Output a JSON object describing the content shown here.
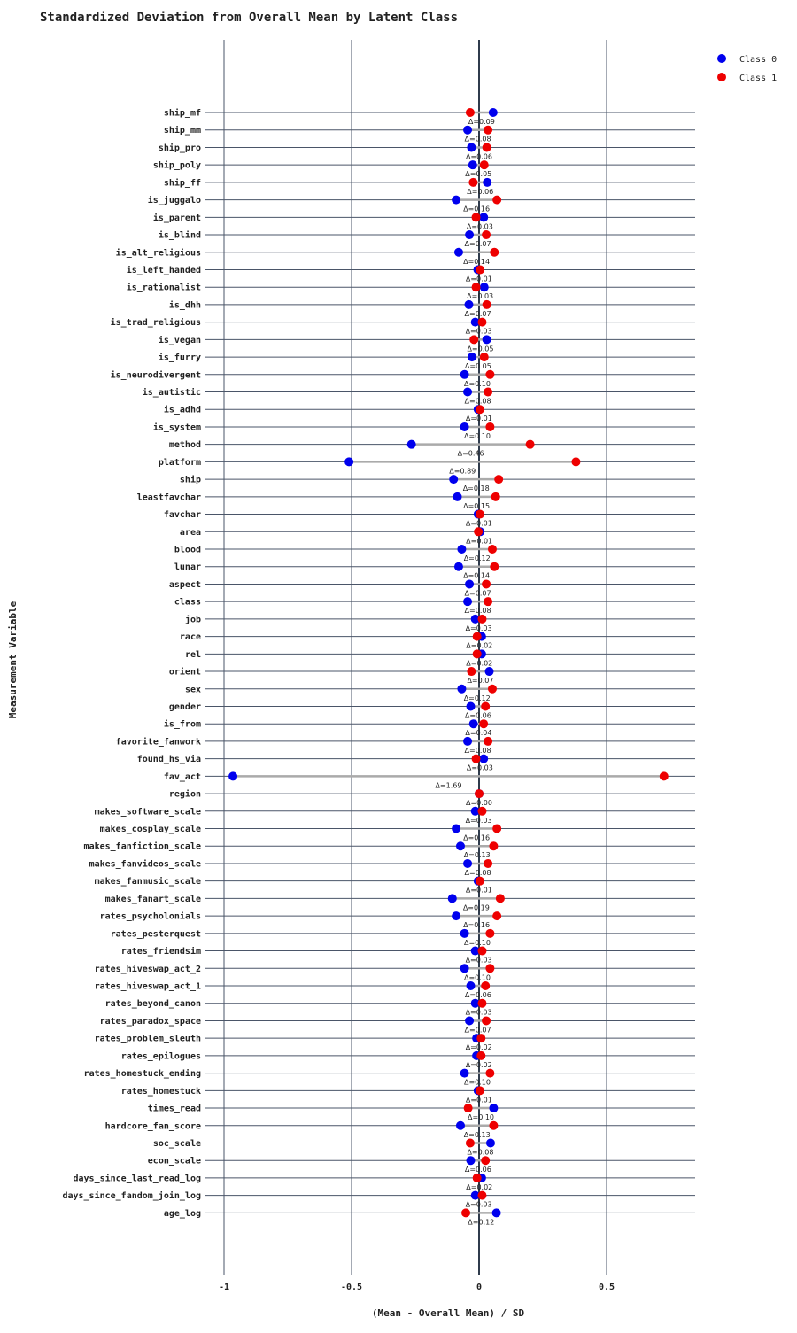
{
  "chart_data": {
    "type": "dot",
    "title": "Standardized Deviation from Overall Mean by Latent Class",
    "xlabel": "(Mean - Overall Mean) / SD",
    "ylabel": "Measurement Variable",
    "xlim": [
      -1.0,
      0.85
    ],
    "xticks": [
      -1,
      -0.5,
      0,
      0.5
    ],
    "xtick_labels": [
      "-1",
      "-0.5",
      "0",
      "0.5"
    ],
    "legend_position": "top-right",
    "series": [
      {
        "name": "Class 0",
        "color": "#0000ee"
      },
      {
        "name": "Class 1",
        "color": "#ee0000"
      }
    ],
    "rows": [
      {
        "label": "ship_mf",
        "c0": 0.055,
        "c1": -0.035,
        "delta": "Δ=0.09"
      },
      {
        "label": "ship_mm",
        "c0": -0.045,
        "c1": 0.035,
        "delta": "Δ=0.08"
      },
      {
        "label": "ship_pro",
        "c0": -0.03,
        "c1": 0.03,
        "delta": "Δ=0.06"
      },
      {
        "label": "ship_poly",
        "c0": -0.025,
        "c1": 0.02,
        "delta": "Δ=0.05"
      },
      {
        "label": "ship_ff",
        "c0": 0.032,
        "c1": -0.023,
        "delta": "Δ=0.06"
      },
      {
        "label": "is_juggalo",
        "c0": -0.09,
        "c1": 0.07,
        "delta": "Δ=0.16"
      },
      {
        "label": "is_parent",
        "c0": 0.018,
        "c1": -0.012,
        "delta": "Δ=0.03"
      },
      {
        "label": "is_blind",
        "c0": -0.038,
        "c1": 0.028,
        "delta": "Δ=0.07"
      },
      {
        "label": "is_alt_religious",
        "c0": -0.08,
        "c1": 0.06,
        "delta": "Δ=0.14"
      },
      {
        "label": "is_left_handed",
        "c0": -0.005,
        "c1": 0.004,
        "delta": "Δ=0.01"
      },
      {
        "label": "is_rationalist",
        "c0": 0.02,
        "c1": -0.012,
        "delta": "Δ=0.03"
      },
      {
        "label": "is_dhh",
        "c0": -0.04,
        "c1": 0.03,
        "delta": "Δ=0.07"
      },
      {
        "label": "is_trad_religious",
        "c0": -0.015,
        "c1": 0.012,
        "delta": "Δ=0.03"
      },
      {
        "label": "is_vegan",
        "c0": 0.03,
        "c1": -0.02,
        "delta": "Δ=0.05"
      },
      {
        "label": "is_furry",
        "c0": -0.028,
        "c1": 0.02,
        "delta": "Δ=0.05"
      },
      {
        "label": "is_neurodivergent",
        "c0": -0.057,
        "c1": 0.043,
        "delta": "Δ=0.10"
      },
      {
        "label": "is_autistic",
        "c0": -0.045,
        "c1": 0.035,
        "delta": "Δ=0.08"
      },
      {
        "label": "is_adhd",
        "c0": -0.004,
        "c1": 0.003,
        "delta": "Δ=0.01"
      },
      {
        "label": "is_system",
        "c0": -0.057,
        "c1": 0.043,
        "delta": "Δ=0.10"
      },
      {
        "label": "method",
        "c0": -0.265,
        "c1": 0.2,
        "delta": "Δ=0.46"
      },
      {
        "label": "platform",
        "c0": -0.51,
        "c1": 0.38,
        "delta": "Δ=0.89"
      },
      {
        "label": "ship",
        "c0": -0.1,
        "c1": 0.077,
        "delta": "Δ=0.18"
      },
      {
        "label": "leastfavchar",
        "c0": -0.085,
        "c1": 0.065,
        "delta": "Δ=0.15"
      },
      {
        "label": "favchar",
        "c0": -0.004,
        "c1": 0.003,
        "delta": "Δ=0.01"
      },
      {
        "label": "area",
        "c0": 0.004,
        "c1": -0.003,
        "delta": "Δ=0.01"
      },
      {
        "label": "blood",
        "c0": -0.068,
        "c1": 0.052,
        "delta": "Δ=0.12"
      },
      {
        "label": "lunar",
        "c0": -0.08,
        "c1": 0.06,
        "delta": "Δ=0.14"
      },
      {
        "label": "aspect",
        "c0": -0.038,
        "c1": 0.028,
        "delta": "Δ=0.07"
      },
      {
        "label": "class",
        "c0": -0.045,
        "c1": 0.035,
        "delta": "Δ=0.08"
      },
      {
        "label": "job",
        "c0": -0.015,
        "c1": 0.012,
        "delta": "Δ=0.03"
      },
      {
        "label": "race",
        "c0": 0.01,
        "c1": -0.008,
        "delta": "Δ=0.02"
      },
      {
        "label": "rel",
        "c0": 0.01,
        "c1": -0.008,
        "delta": "Δ=0.02"
      },
      {
        "label": "orient",
        "c0": 0.04,
        "c1": -0.03,
        "delta": "Δ=0.07"
      },
      {
        "label": "sex",
        "c0": -0.068,
        "c1": 0.052,
        "delta": "Δ=0.12"
      },
      {
        "label": "gender",
        "c0": -0.033,
        "c1": 0.025,
        "delta": "Δ=0.06"
      },
      {
        "label": "is_from",
        "c0": -0.022,
        "c1": 0.018,
        "delta": "Δ=0.04"
      },
      {
        "label": "favorite_fanwork",
        "c0": -0.045,
        "c1": 0.035,
        "delta": "Δ=0.08"
      },
      {
        "label": "found_hs_via",
        "c0": 0.018,
        "c1": -0.012,
        "delta": "Δ=0.03"
      },
      {
        "label": "fav_act",
        "c0": -0.965,
        "c1": 0.725,
        "delta": "Δ=1.69"
      },
      {
        "label": "region",
        "c0": 0.0,
        "c1": 0.0,
        "delta": "Δ=0.00"
      },
      {
        "label": "makes_software_scale",
        "c0": -0.015,
        "c1": 0.012,
        "delta": "Δ=0.03"
      },
      {
        "label": "makes_cosplay_scale",
        "c0": -0.09,
        "c1": 0.07,
        "delta": "Δ=0.16"
      },
      {
        "label": "makes_fanfiction_scale",
        "c0": -0.073,
        "c1": 0.057,
        "delta": "Δ=0.13"
      },
      {
        "label": "makes_fanvideos_scale",
        "c0": -0.045,
        "c1": 0.035,
        "delta": "Δ=0.08"
      },
      {
        "label": "makes_fanmusic_scale",
        "c0": -0.004,
        "c1": 0.003,
        "delta": "Δ=0.01"
      },
      {
        "label": "makes_fanart_scale",
        "c0": -0.105,
        "c1": 0.083,
        "delta": "Δ=0.19"
      },
      {
        "label": "rates_psycholonials",
        "c0": -0.09,
        "c1": 0.07,
        "delta": "Δ=0.16"
      },
      {
        "label": "rates_pesterquest",
        "c0": -0.057,
        "c1": 0.043,
        "delta": "Δ=0.10"
      },
      {
        "label": "rates_friendsim",
        "c0": -0.015,
        "c1": 0.012,
        "delta": "Δ=0.03"
      },
      {
        "label": "rates_hiveswap_act_2",
        "c0": -0.057,
        "c1": 0.043,
        "delta": "Δ=0.10"
      },
      {
        "label": "rates_hiveswap_act_1",
        "c0": -0.033,
        "c1": 0.025,
        "delta": "Δ=0.06"
      },
      {
        "label": "rates_beyond_canon",
        "c0": -0.015,
        "c1": 0.012,
        "delta": "Δ=0.03"
      },
      {
        "label": "rates_paradox_space",
        "c0": -0.038,
        "c1": 0.028,
        "delta": "Δ=0.07"
      },
      {
        "label": "rates_problem_sleuth",
        "c0": -0.01,
        "c1": 0.008,
        "delta": "Δ=0.02"
      },
      {
        "label": "rates_epilogues",
        "c0": -0.01,
        "c1": 0.008,
        "delta": "Δ=0.02"
      },
      {
        "label": "rates_homestuck_ending",
        "c0": -0.057,
        "c1": 0.043,
        "delta": "Δ=0.10"
      },
      {
        "label": "rates_homestuck",
        "c0": -0.004,
        "c1": 0.003,
        "delta": "Δ=0.01"
      },
      {
        "label": "times_read",
        "c0": 0.057,
        "c1": -0.043,
        "delta": "Δ=0.10"
      },
      {
        "label": "hardcore_fan_score",
        "c0": -0.073,
        "c1": 0.057,
        "delta": "Δ=0.13"
      },
      {
        "label": "soc_scale",
        "c0": 0.045,
        "c1": -0.035,
        "delta": "Δ=0.08"
      },
      {
        "label": "econ_scale",
        "c0": -0.033,
        "c1": 0.025,
        "delta": "Δ=0.06"
      },
      {
        "label": "days_since_last_read_log",
        "c0": 0.01,
        "c1": -0.008,
        "delta": "Δ=0.02"
      },
      {
        "label": "days_since_fandom_join_log",
        "c0": -0.015,
        "c1": 0.012,
        "delta": "Δ=0.03"
      },
      {
        "label": "age_log",
        "c0": 0.068,
        "c1": -0.052,
        "delta": "Δ=0.12"
      }
    ]
  }
}
